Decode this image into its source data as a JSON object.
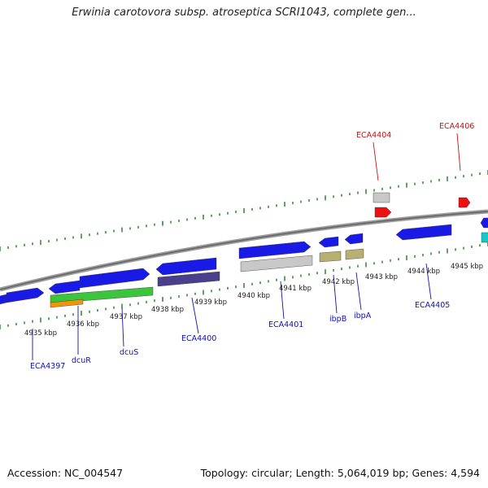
{
  "header": {
    "title": "Erwinia carotovora subsp. atroseptica SCRI1043, complete gen..."
  },
  "footer": {
    "accession": "Accession: NC_004547",
    "stats": "Topology: circular; Length: 5,064,019 bp; Genes: 4,594"
  },
  "colors": {
    "forward_gene": "#1a1ae6",
    "reverse_gene": "#1a1ae6",
    "backbone": "#8a8a8a",
    "tick": "#1f7a1f",
    "label_blue": "#1010b0",
    "label_red": "#cc1010"
  },
  "scale_labels": [
    "4935 kbp",
    "4936 kbp",
    "4937 kbp",
    "4938 kbp",
    "4939 kbp",
    "4940 kbp",
    "4941 kbp",
    "4942 kbp",
    "4943 kbp",
    "4944 kbp",
    "4945 kbp"
  ],
  "gene_labels": [
    {
      "id": "ECA4397",
      "color": "blue"
    },
    {
      "id": "dcuR",
      "color": "blue"
    },
    {
      "id": "dcuS",
      "color": "blue"
    },
    {
      "id": "ECA4400",
      "color": "blue"
    },
    {
      "id": "ECA4401",
      "color": "blue"
    },
    {
      "id": "ibpB",
      "color": "blue"
    },
    {
      "id": "ibpA",
      "color": "blue"
    },
    {
      "id": "ECA4405",
      "color": "blue"
    },
    {
      "id": "ECA4404",
      "color": "red"
    },
    {
      "id": "ECA4406",
      "color": "red"
    }
  ]
}
